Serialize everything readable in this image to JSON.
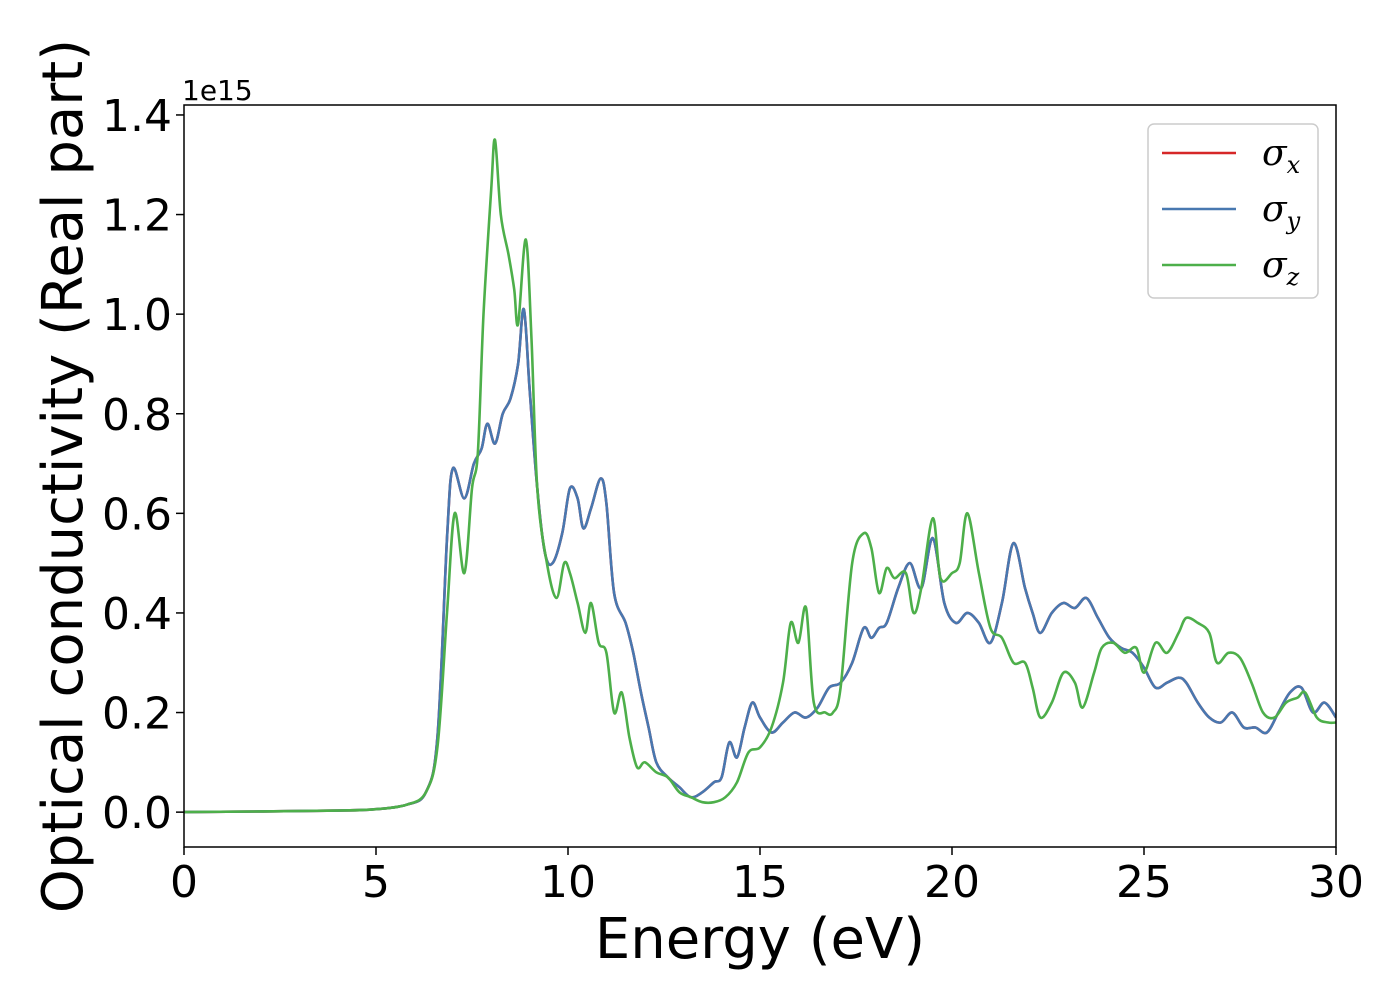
{
  "chart_data": {
    "type": "line",
    "xlabel": "Energy (eV)",
    "ylabel": "Optical conductivity (Real part)",
    "y_offset_text": "1e15",
    "xlim": [
      0,
      30
    ],
    "ylim": [
      -0.07,
      1.42
    ],
    "x_ticks": [
      0,
      5,
      10,
      15,
      20,
      25,
      30
    ],
    "x_tick_labels": [
      "0",
      "5",
      "10",
      "15",
      "20",
      "25",
      "30"
    ],
    "y_ticks": [
      0.0,
      0.2,
      0.4,
      0.6,
      0.8,
      1.0,
      1.2,
      1.4
    ],
    "y_tick_labels": [
      "0.0",
      "0.2",
      "0.4",
      "0.6",
      "0.8",
      "1.0",
      "1.2",
      "1.4"
    ],
    "grid": false,
    "legend_position": "top-right",
    "series": [
      {
        "name": "σ",
        "subscript": "x",
        "color": "#d62728",
        "points": [
          [
            0,
            0
          ],
          [
            4,
            0.003
          ],
          [
            5,
            0.006
          ],
          [
            5.8,
            0.015
          ],
          [
            6.3,
            0.04
          ],
          [
            6.6,
            0.15
          ],
          [
            6.85,
            0.55
          ],
          [
            7.0,
            0.69
          ],
          [
            7.3,
            0.63
          ],
          [
            7.55,
            0.7
          ],
          [
            7.75,
            0.73
          ],
          [
            7.9,
            0.78
          ],
          [
            8.1,
            0.74
          ],
          [
            8.3,
            0.8
          ],
          [
            8.5,
            0.83
          ],
          [
            8.7,
            0.9
          ],
          [
            8.85,
            1.01
          ],
          [
            9.0,
            0.85
          ],
          [
            9.2,
            0.65
          ],
          [
            9.4,
            0.52
          ],
          [
            9.6,
            0.5
          ],
          [
            9.85,
            0.56
          ],
          [
            10.05,
            0.65
          ],
          [
            10.25,
            0.63
          ],
          [
            10.4,
            0.57
          ],
          [
            10.6,
            0.61
          ],
          [
            10.85,
            0.67
          ],
          [
            11.0,
            0.62
          ],
          [
            11.2,
            0.44
          ],
          [
            11.5,
            0.38
          ],
          [
            11.7,
            0.32
          ],
          [
            11.9,
            0.24
          ],
          [
            12.1,
            0.17
          ],
          [
            12.3,
            0.1
          ],
          [
            12.6,
            0.07
          ],
          [
            12.9,
            0.05
          ],
          [
            13.2,
            0.03
          ],
          [
            13.5,
            0.04
          ],
          [
            13.8,
            0.06
          ],
          [
            14.0,
            0.07
          ],
          [
            14.2,
            0.14
          ],
          [
            14.4,
            0.11
          ],
          [
            14.6,
            0.17
          ],
          [
            14.8,
            0.22
          ],
          [
            15.0,
            0.19
          ],
          [
            15.3,
            0.16
          ],
          [
            15.6,
            0.18
          ],
          [
            15.9,
            0.2
          ],
          [
            16.2,
            0.19
          ],
          [
            16.5,
            0.21
          ],
          [
            16.8,
            0.25
          ],
          [
            17.1,
            0.26
          ],
          [
            17.4,
            0.3
          ],
          [
            17.7,
            0.37
          ],
          [
            17.9,
            0.35
          ],
          [
            18.1,
            0.37
          ],
          [
            18.3,
            0.38
          ],
          [
            18.6,
            0.45
          ],
          [
            18.9,
            0.5
          ],
          [
            19.2,
            0.45
          ],
          [
            19.5,
            0.55
          ],
          [
            19.8,
            0.42
          ],
          [
            20.1,
            0.38
          ],
          [
            20.4,
            0.4
          ],
          [
            20.7,
            0.38
          ],
          [
            21.0,
            0.34
          ],
          [
            21.3,
            0.42
          ],
          [
            21.6,
            0.54
          ],
          [
            21.9,
            0.45
          ],
          [
            22.1,
            0.4
          ],
          [
            22.3,
            0.36
          ],
          [
            22.6,
            0.4
          ],
          [
            22.9,
            0.42
          ],
          [
            23.2,
            0.41
          ],
          [
            23.5,
            0.43
          ],
          [
            23.8,
            0.39
          ],
          [
            24.1,
            0.35
          ],
          [
            24.4,
            0.33
          ],
          [
            24.7,
            0.32
          ],
          [
            25.0,
            0.29
          ],
          [
            25.3,
            0.25
          ],
          [
            25.6,
            0.26
          ],
          [
            25.9,
            0.27
          ],
          [
            26.1,
            0.26
          ],
          [
            26.4,
            0.22
          ],
          [
            26.7,
            0.19
          ],
          [
            27.0,
            0.18
          ],
          [
            27.3,
            0.2
          ],
          [
            27.6,
            0.17
          ],
          [
            27.9,
            0.17
          ],
          [
            28.2,
            0.16
          ],
          [
            28.5,
            0.2
          ],
          [
            28.8,
            0.24
          ],
          [
            29.1,
            0.25
          ],
          [
            29.4,
            0.2
          ],
          [
            29.7,
            0.22
          ],
          [
            30.0,
            0.19
          ]
        ]
      },
      {
        "name": "σ",
        "subscript": "y",
        "color": "#4878b0",
        "points": [
          [
            0,
            0
          ],
          [
            4,
            0.003
          ],
          [
            5,
            0.006
          ],
          [
            5.8,
            0.015
          ],
          [
            6.3,
            0.04
          ],
          [
            6.6,
            0.15
          ],
          [
            6.85,
            0.55
          ],
          [
            7.0,
            0.69
          ],
          [
            7.3,
            0.63
          ],
          [
            7.55,
            0.7
          ],
          [
            7.75,
            0.73
          ],
          [
            7.9,
            0.78
          ],
          [
            8.1,
            0.74
          ],
          [
            8.3,
            0.8
          ],
          [
            8.5,
            0.83
          ],
          [
            8.7,
            0.9
          ],
          [
            8.85,
            1.01
          ],
          [
            9.0,
            0.85
          ],
          [
            9.2,
            0.65
          ],
          [
            9.4,
            0.52
          ],
          [
            9.6,
            0.5
          ],
          [
            9.85,
            0.56
          ],
          [
            10.05,
            0.65
          ],
          [
            10.25,
            0.63
          ],
          [
            10.4,
            0.57
          ],
          [
            10.6,
            0.61
          ],
          [
            10.85,
            0.67
          ],
          [
            11.0,
            0.62
          ],
          [
            11.2,
            0.44
          ],
          [
            11.5,
            0.38
          ],
          [
            11.7,
            0.32
          ],
          [
            11.9,
            0.24
          ],
          [
            12.1,
            0.17
          ],
          [
            12.3,
            0.1
          ],
          [
            12.6,
            0.07
          ],
          [
            12.9,
            0.05
          ],
          [
            13.2,
            0.03
          ],
          [
            13.5,
            0.04
          ],
          [
            13.8,
            0.06
          ],
          [
            14.0,
            0.07
          ],
          [
            14.2,
            0.14
          ],
          [
            14.4,
            0.11
          ],
          [
            14.6,
            0.17
          ],
          [
            14.8,
            0.22
          ],
          [
            15.0,
            0.19
          ],
          [
            15.3,
            0.16
          ],
          [
            15.6,
            0.18
          ],
          [
            15.9,
            0.2
          ],
          [
            16.2,
            0.19
          ],
          [
            16.5,
            0.21
          ],
          [
            16.8,
            0.25
          ],
          [
            17.1,
            0.26
          ],
          [
            17.4,
            0.3
          ],
          [
            17.7,
            0.37
          ],
          [
            17.9,
            0.35
          ],
          [
            18.1,
            0.37
          ],
          [
            18.3,
            0.38
          ],
          [
            18.6,
            0.45
          ],
          [
            18.9,
            0.5
          ],
          [
            19.2,
            0.45
          ],
          [
            19.5,
            0.55
          ],
          [
            19.8,
            0.42
          ],
          [
            20.1,
            0.38
          ],
          [
            20.4,
            0.4
          ],
          [
            20.7,
            0.38
          ],
          [
            21.0,
            0.34
          ],
          [
            21.3,
            0.42
          ],
          [
            21.6,
            0.54
          ],
          [
            21.9,
            0.45
          ],
          [
            22.1,
            0.4
          ],
          [
            22.3,
            0.36
          ],
          [
            22.6,
            0.4
          ],
          [
            22.9,
            0.42
          ],
          [
            23.2,
            0.41
          ],
          [
            23.5,
            0.43
          ],
          [
            23.8,
            0.39
          ],
          [
            24.1,
            0.35
          ],
          [
            24.4,
            0.33
          ],
          [
            24.7,
            0.32
          ],
          [
            25.0,
            0.29
          ],
          [
            25.3,
            0.25
          ],
          [
            25.6,
            0.26
          ],
          [
            25.9,
            0.27
          ],
          [
            26.1,
            0.26
          ],
          [
            26.4,
            0.22
          ],
          [
            26.7,
            0.19
          ],
          [
            27.0,
            0.18
          ],
          [
            27.3,
            0.2
          ],
          [
            27.6,
            0.17
          ],
          [
            27.9,
            0.17
          ],
          [
            28.2,
            0.16
          ],
          [
            28.5,
            0.2
          ],
          [
            28.8,
            0.24
          ],
          [
            29.1,
            0.25
          ],
          [
            29.4,
            0.2
          ],
          [
            29.7,
            0.22
          ],
          [
            30.0,
            0.19
          ]
        ]
      },
      {
        "name": "σ",
        "subscript": "z",
        "color": "#4daf4a",
        "points": [
          [
            0,
            0
          ],
          [
            4,
            0.003
          ],
          [
            5,
            0.006
          ],
          [
            5.8,
            0.015
          ],
          [
            6.3,
            0.04
          ],
          [
            6.6,
            0.13
          ],
          [
            6.85,
            0.4
          ],
          [
            7.05,
            0.6
          ],
          [
            7.3,
            0.48
          ],
          [
            7.5,
            0.65
          ],
          [
            7.65,
            0.72
          ],
          [
            7.8,
            1.0
          ],
          [
            8.0,
            1.25
          ],
          [
            8.1,
            1.35
          ],
          [
            8.25,
            1.2
          ],
          [
            8.45,
            1.12
          ],
          [
            8.6,
            1.05
          ],
          [
            8.7,
            0.98
          ],
          [
            8.9,
            1.15
          ],
          [
            9.05,
            0.95
          ],
          [
            9.2,
            0.65
          ],
          [
            9.45,
            0.5
          ],
          [
            9.7,
            0.43
          ],
          [
            9.9,
            0.5
          ],
          [
            10.05,
            0.48
          ],
          [
            10.25,
            0.42
          ],
          [
            10.45,
            0.36
          ],
          [
            10.6,
            0.42
          ],
          [
            10.8,
            0.34
          ],
          [
            11.0,
            0.32
          ],
          [
            11.2,
            0.2
          ],
          [
            11.4,
            0.24
          ],
          [
            11.6,
            0.15
          ],
          [
            11.8,
            0.09
          ],
          [
            12.0,
            0.1
          ],
          [
            12.3,
            0.08
          ],
          [
            12.6,
            0.07
          ],
          [
            12.9,
            0.04
          ],
          [
            13.2,
            0.03
          ],
          [
            13.5,
            0.02
          ],
          [
            13.8,
            0.02
          ],
          [
            14.1,
            0.03
          ],
          [
            14.4,
            0.06
          ],
          [
            14.7,
            0.12
          ],
          [
            15.0,
            0.13
          ],
          [
            15.3,
            0.17
          ],
          [
            15.6,
            0.26
          ],
          [
            15.8,
            0.38
          ],
          [
            16.0,
            0.34
          ],
          [
            16.2,
            0.41
          ],
          [
            16.4,
            0.22
          ],
          [
            16.7,
            0.2
          ],
          [
            16.9,
            0.2
          ],
          [
            17.1,
            0.25
          ],
          [
            17.4,
            0.5
          ],
          [
            17.7,
            0.56
          ],
          [
            17.9,
            0.53
          ],
          [
            18.1,
            0.44
          ],
          [
            18.3,
            0.49
          ],
          [
            18.5,
            0.47
          ],
          [
            18.8,
            0.48
          ],
          [
            19.0,
            0.4
          ],
          [
            19.2,
            0.45
          ],
          [
            19.5,
            0.59
          ],
          [
            19.7,
            0.47
          ],
          [
            20.0,
            0.48
          ],
          [
            20.2,
            0.5
          ],
          [
            20.4,
            0.6
          ],
          [
            20.7,
            0.48
          ],
          [
            21.0,
            0.37
          ],
          [
            21.3,
            0.35
          ],
          [
            21.6,
            0.3
          ],
          [
            21.9,
            0.3
          ],
          [
            22.1,
            0.25
          ],
          [
            22.3,
            0.19
          ],
          [
            22.6,
            0.22
          ],
          [
            22.9,
            0.28
          ],
          [
            23.2,
            0.26
          ],
          [
            23.4,
            0.21
          ],
          [
            23.7,
            0.28
          ],
          [
            23.9,
            0.33
          ],
          [
            24.2,
            0.34
          ],
          [
            24.5,
            0.32
          ],
          [
            24.8,
            0.33
          ],
          [
            25.0,
            0.28
          ],
          [
            25.3,
            0.34
          ],
          [
            25.6,
            0.32
          ],
          [
            25.9,
            0.36
          ],
          [
            26.1,
            0.39
          ],
          [
            26.4,
            0.38
          ],
          [
            26.7,
            0.36
          ],
          [
            26.9,
            0.3
          ],
          [
            27.2,
            0.32
          ],
          [
            27.5,
            0.31
          ],
          [
            27.8,
            0.26
          ],
          [
            28.1,
            0.2
          ],
          [
            28.4,
            0.19
          ],
          [
            28.7,
            0.22
          ],
          [
            29.0,
            0.23
          ],
          [
            29.2,
            0.24
          ],
          [
            29.5,
            0.19
          ],
          [
            29.8,
            0.18
          ],
          [
            30.0,
            0.18
          ]
        ]
      }
    ]
  }
}
